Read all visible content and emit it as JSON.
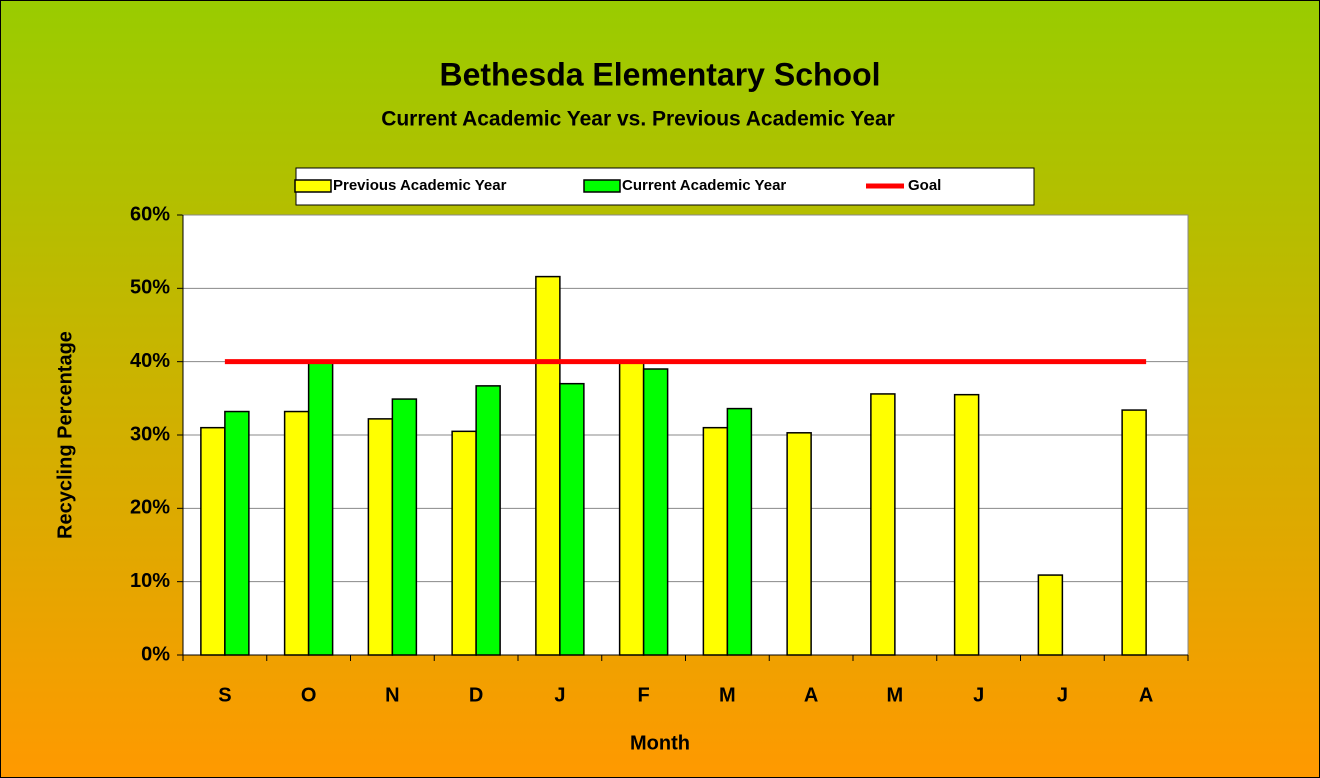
{
  "chart_data": {
    "type": "bar",
    "title": "Bethesda Elementary School",
    "subtitle": "Current Academic Year vs. Previous Academic Year",
    "x_label": "Month",
    "y_label": "Recycling Percentage",
    "categories": [
      "S",
      "O",
      "N",
      "D",
      "J",
      "F",
      "M",
      "A",
      "M",
      "J",
      "J",
      "A"
    ],
    "series": [
      {
        "name": "Previous Academic Year",
        "color": "#ffff00",
        "type": "bar",
        "values": [
          31,
          33.2,
          32.2,
          30.5,
          51.6,
          40,
          31,
          30.3,
          35.6,
          35.5,
          10.9,
          33.4
        ]
      },
      {
        "name": "Current Academic Year",
        "color": "#00ff00",
        "type": "bar",
        "values": [
          33.2,
          40,
          34.9,
          36.7,
          37,
          39,
          33.6,
          null,
          null,
          null,
          null,
          null
        ]
      },
      {
        "name": "Goal",
        "color": "#ff0000",
        "type": "line",
        "values": [
          40,
          40,
          40,
          40,
          40,
          40,
          40,
          40,
          40,
          40,
          40,
          40
        ]
      }
    ],
    "ylim": [
      0,
      60
    ],
    "yticks": [
      {
        "value": 0,
        "label": "0%"
      },
      {
        "value": 10,
        "label": "10%"
      },
      {
        "value": 20,
        "label": "20%"
      },
      {
        "value": 30,
        "label": "30%"
      },
      {
        "value": 40,
        "label": "40%"
      },
      {
        "value": 50,
        "label": "50%"
      },
      {
        "value": 60,
        "label": "60%"
      }
    ],
    "grid": true,
    "legend": "top"
  }
}
